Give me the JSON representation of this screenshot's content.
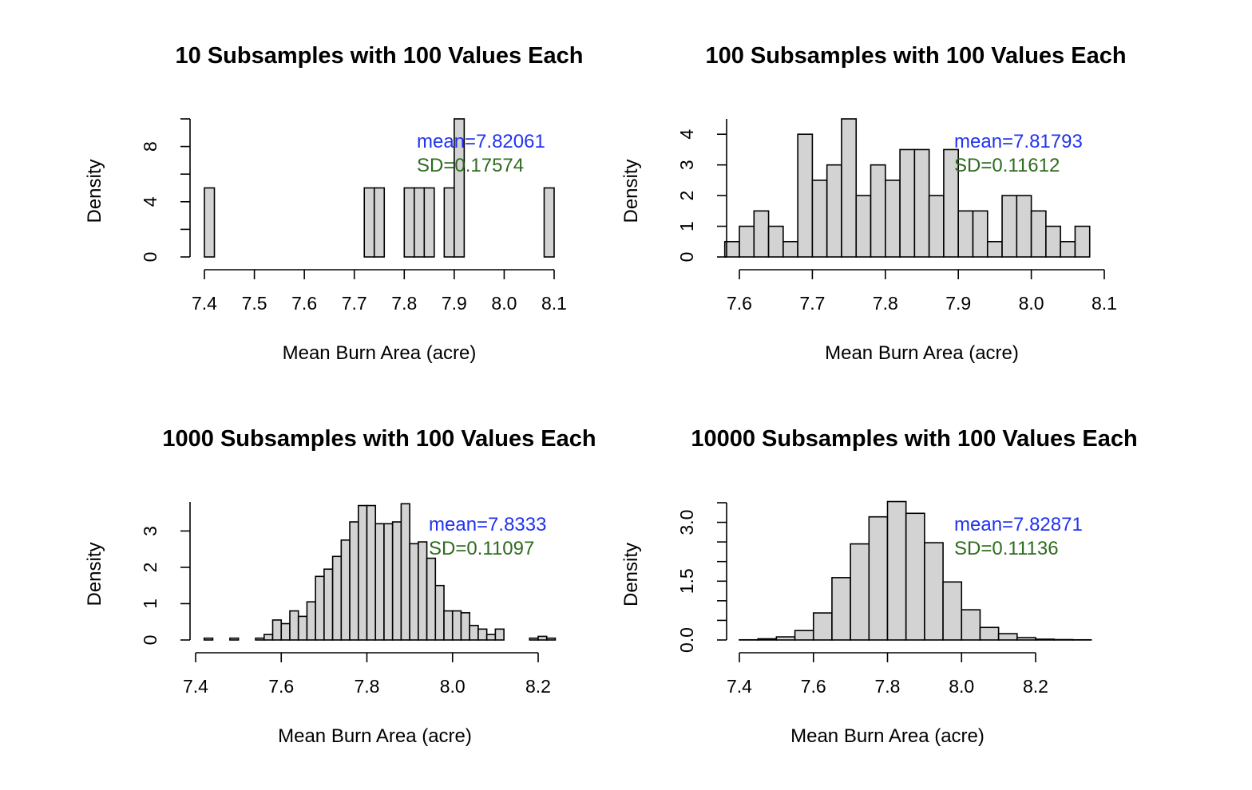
{
  "chart_data": [
    {
      "type": "bar",
      "title": "10 Subsamples with 100 Values Each",
      "xlabel": "Mean Burn Area (acre)",
      "ylabel": "Density",
      "xlim": [
        7.4,
        8.1
      ],
      "ylim": [
        0,
        10
      ],
      "xticks": [
        "7.4",
        "7.5",
        "7.6",
        "7.7",
        "7.8",
        "7.9",
        "8.0",
        "8.1"
      ],
      "yticks": [
        "0",
        "4",
        "8"
      ],
      "bin_edges": [
        7.4,
        7.42,
        7.44,
        7.46,
        7.48,
        7.5,
        7.52,
        7.54,
        7.56,
        7.58,
        7.6,
        7.62,
        7.64,
        7.66,
        7.68,
        7.7,
        7.72,
        7.74,
        7.76,
        7.78,
        7.8,
        7.82,
        7.84,
        7.86,
        7.88,
        7.9,
        7.92,
        7.94,
        7.96,
        7.98,
        8.0,
        8.02,
        8.04,
        8.06,
        8.08,
        8.1
      ],
      "values": [
        5,
        0,
        0,
        0,
        0,
        0,
        0,
        0,
        0,
        0,
        0,
        0,
        0,
        0,
        0,
        0,
        5,
        5,
        0,
        0,
        5,
        5,
        5,
        0,
        5,
        10,
        0,
        0,
        0,
        0,
        0,
        0,
        0,
        0,
        5
      ],
      "annotations": {
        "mean": "mean=7.82061",
        "sd": "SD=0.17574",
        "mean_color": "#2233ee",
        "sd_color": "#2e6b1f"
      },
      "bar_fill": "#d3d3d3",
      "grid": false,
      "legend": "none"
    },
    {
      "type": "bar",
      "title": "100 Subsamples with 100 Values Each",
      "xlabel": "Mean Burn Area (acre)",
      "ylabel": "Density",
      "xlim": [
        7.6,
        8.1
      ],
      "ylim": [
        0,
        4.5
      ],
      "xticks": [
        "7.6",
        "7.7",
        "7.8",
        "7.9",
        "8.0",
        "8.1"
      ],
      "yticks": [
        "0",
        "1",
        "2",
        "3",
        "4"
      ],
      "bin_edges": [
        7.58,
        7.6,
        7.62,
        7.64,
        7.66,
        7.68,
        7.7,
        7.72,
        7.74,
        7.76,
        7.78,
        7.8,
        7.82,
        7.84,
        7.86,
        7.88,
        7.9,
        7.92,
        7.94,
        7.96,
        7.98,
        8.0,
        8.02,
        8.04,
        8.06,
        8.08
      ],
      "values": [
        0.5,
        1.0,
        1.5,
        1.0,
        0.5,
        4.0,
        2.5,
        3.0,
        4.5,
        2.0,
        3.0,
        2.5,
        3.5,
        3.5,
        2.0,
        3.5,
        1.5,
        1.5,
        0.5,
        2.0,
        2.0,
        1.5,
        1.0,
        0.5,
        1.0
      ],
      "annotations": {
        "mean": "mean=7.81793",
        "sd": "SD=0.11612",
        "mean_color": "#2233ee",
        "sd_color": "#2e6b1f"
      },
      "bar_fill": "#d3d3d3",
      "grid": false,
      "legend": "none"
    },
    {
      "type": "bar",
      "title": "1000 Subsamples with 100 Values Each",
      "xlabel": "Mean Burn Area (acre)",
      "ylabel": "Density",
      "xlim": [
        7.4,
        8.2
      ],
      "ylim": [
        0,
        3.8
      ],
      "xticks": [
        "7.4",
        "7.6",
        "7.8",
        "8.0",
        "8.2"
      ],
      "yticks": [
        "0",
        "1",
        "2",
        "3"
      ],
      "bin_edges": [
        7.42,
        7.44,
        7.46,
        7.48,
        7.5,
        7.52,
        7.54,
        7.56,
        7.58,
        7.6,
        7.62,
        7.64,
        7.66,
        7.68,
        7.7,
        7.72,
        7.74,
        7.76,
        7.78,
        7.8,
        7.82,
        7.84,
        7.86,
        7.88,
        7.9,
        7.92,
        7.94,
        7.96,
        7.98,
        8.0,
        8.02,
        8.04,
        8.06,
        8.08,
        8.1,
        8.12,
        8.14,
        8.16,
        8.18,
        8.2,
        8.22,
        8.24
      ],
      "values": [
        0.05,
        0.0,
        0.0,
        0.05,
        0.0,
        0.0,
        0.05,
        0.15,
        0.55,
        0.45,
        0.8,
        0.65,
        1.05,
        1.75,
        1.95,
        2.3,
        2.75,
        3.25,
        3.7,
        3.7,
        3.2,
        3.2,
        3.25,
        3.75,
        2.65,
        2.7,
        2.25,
        1.5,
        0.8,
        0.8,
        0.75,
        0.4,
        0.3,
        0.15,
        0.3,
        0.0,
        0.0,
        0.0,
        0.05,
        0.1,
        0.05
      ],
      "annotations": {
        "mean": "mean=7.8333",
        "sd": "SD=0.11097",
        "mean_color": "#2233ee",
        "sd_color": "#2e6b1f"
      },
      "bar_fill": "#d3d3d3",
      "grid": false,
      "legend": "none"
    },
    {
      "type": "bar",
      "title": "10000 Subsamples with 100 Values Each",
      "xlabel": "Mean Burn Area (acre)",
      "ylabel": "Density",
      "xlim": [
        7.4,
        8.2
      ],
      "ylim": [
        0,
        3.5
      ],
      "xticks": [
        "7.4",
        "7.6",
        "7.8",
        "8.0",
        "8.2"
      ],
      "yticks": [
        "0.0",
        "1.5",
        "3.0"
      ],
      "yticks_minor": [
        0.5,
        1.0,
        2.0,
        2.5,
        3.5
      ],
      "bin_edges": [
        7.4,
        7.45,
        7.5,
        7.55,
        7.6,
        7.65,
        7.7,
        7.75,
        7.8,
        7.85,
        7.9,
        7.95,
        8.0,
        8.05,
        8.1,
        8.15,
        8.2,
        8.25,
        8.3,
        8.35
      ],
      "values": [
        0.005,
        0.03,
        0.08,
        0.24,
        0.69,
        1.59,
        2.45,
        3.14,
        3.53,
        3.23,
        2.48,
        1.48,
        0.77,
        0.32,
        0.16,
        0.06,
        0.02,
        0.01,
        0.005
      ],
      "annotations": {
        "mean": "mean=7.82871",
        "sd": "SD=0.11136",
        "mean_color": "#2233ee",
        "sd_color": "#2e6b1f"
      },
      "bar_fill": "#d3d3d3",
      "grid": false,
      "legend": "none"
    }
  ]
}
